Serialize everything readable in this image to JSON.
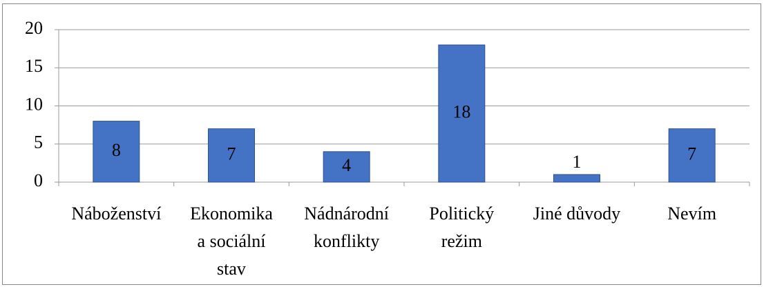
{
  "chart_data": {
    "type": "bar",
    "categories": [
      [
        "Náboženství"
      ],
      [
        "Ekonomika",
        "a sociální",
        "stav"
      ],
      [
        "Nádnárodní",
        "konflikty"
      ],
      [
        "Politický",
        "režim"
      ],
      [
        "Jiné důvody"
      ],
      [
        "Nevím"
      ]
    ],
    "values": [
      8,
      7,
      4,
      18,
      1,
      7
    ],
    "color": "#4472c4",
    "ylim": [
      0,
      20
    ],
    "yticks": [
      0,
      5,
      10,
      15,
      20
    ],
    "grid": true
  }
}
